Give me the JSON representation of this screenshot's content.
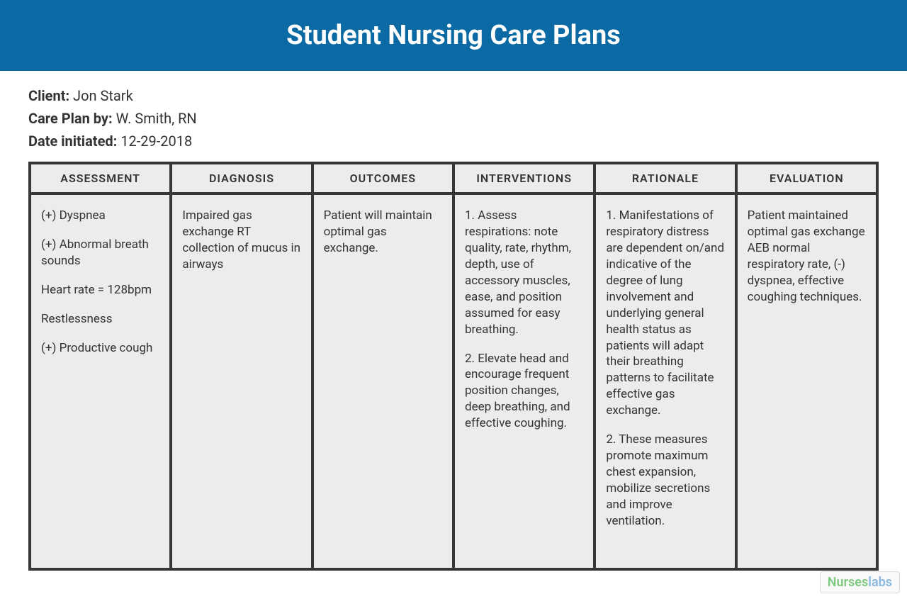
{
  "colors": {
    "header_bg": "#0b69a3",
    "header_text": "#ffffff",
    "table_border": "#373737",
    "cell_bg": "#ececec",
    "body_text": "#333333",
    "page_bg": "#ffffff"
  },
  "header": {
    "title": "Student Nursing Care Plans"
  },
  "meta": {
    "client_label": "Client:",
    "client_value": " Jon Stark",
    "careplanby_label": "Care Plan by:",
    "careplanby_value": " W. Smith, RN",
    "date_label": "Date initiated:",
    "date_value": " 12-29-2018"
  },
  "table": {
    "columns": [
      "ASSESSMENT",
      "DIAGNOSIS",
      "OUTCOMES",
      "INTERVENTIONS",
      "RATIONALE",
      "EVALUATION"
    ],
    "assessment_items": [
      "(+) Dyspnea",
      "(+) Abnormal breath sounds",
      "Heart rate = 128bpm",
      "Restlessness",
      "(+) Productive cough"
    ],
    "diagnosis": "Impaired gas exchange RT collection of mucus in airways",
    "outcomes": "Patient will maintain optimal gas exchange.",
    "interventions": [
      "1. Assess respirations: note quality, rate, rhythm, depth, use of accessory muscles, ease, and position assumed for easy breathing.",
      "2. Elevate head and encourage frequent position changes, deep breathing, and effective coughing."
    ],
    "rationale": [
      "1. Manifestations of respiratory distress are dependent on/and indicative of the degree of lung involvement and underlying general health status as patients will adapt their breathing patterns to facilitate effective gas exchange.",
      "2. These measures promote maximum chest expansion, mobilize secretions and improve ventilation."
    ],
    "evaluation": "Patient maintained optimal gas exchange AEB normal respiratory rate, (-) dyspnea, effective coughing techniques."
  },
  "watermark": {
    "part_a": "Nurses",
    "part_b": "labs"
  }
}
